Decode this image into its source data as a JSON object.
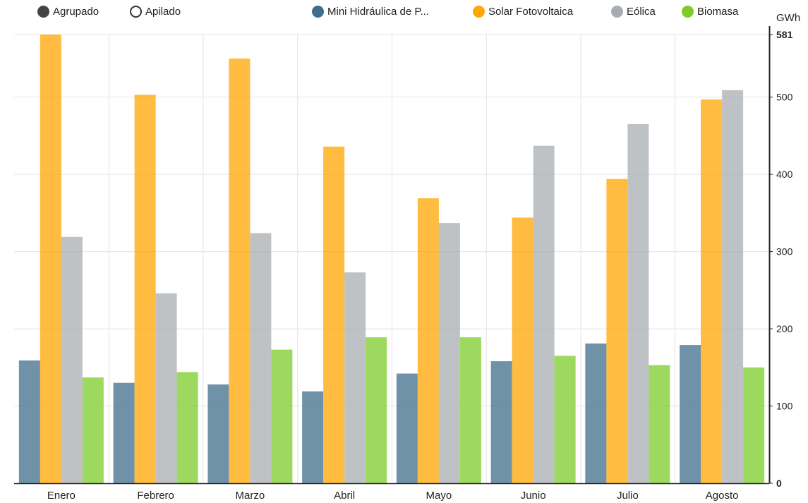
{
  "controls": {
    "grouped_label": "Agrupado",
    "stacked_label": "Apilado",
    "selected": "Agrupado"
  },
  "legend": [
    {
      "name": "Mini Hidráulica de P...",
      "color": "#3f6d8c"
    },
    {
      "name": "Solar Fotovoltaica",
      "color": "#ffa600"
    },
    {
      "name": "Eólica",
      "color": "#a9adb1"
    },
    {
      "name": "Biomasa",
      "color": "#7dcc2a"
    }
  ],
  "chart_data": {
    "type": "bar",
    "grouping": "grouped",
    "categories": [
      "Enero",
      "Febrero",
      "Marzo",
      "Abril",
      "Mayo",
      "Junio",
      "Julio",
      "Agosto"
    ],
    "series": [
      {
        "name": "Mini Hidráulica de P...",
        "color": "#3f6d8c",
        "values": [
          159,
          130,
          128,
          119,
          142,
          158,
          181,
          179
        ]
      },
      {
        "name": "Solar Fotovoltaica",
        "color": "#ffa600",
        "values": [
          581,
          503,
          550,
          436,
          369,
          344,
          394,
          497
        ]
      },
      {
        "name": "Eólica",
        "color": "#a9adb1",
        "values": [
          319,
          246,
          324,
          273,
          337,
          437,
          465,
          509
        ]
      },
      {
        "name": "Biomasa",
        "color": "#7dcc2a",
        "values": [
          137,
          144,
          173,
          189,
          189,
          165,
          153,
          150
        ]
      }
    ],
    "ylabel": "GWh",
    "ylim": [
      0,
      581
    ],
    "yticks": [
      0,
      100,
      200,
      300,
      400,
      500,
      581
    ],
    "ytick_labels": [
      "0",
      "100",
      "200",
      "300",
      "400",
      "500",
      "581"
    ],
    "yaxis_position": "right",
    "grid": true,
    "legend_position": "top"
  }
}
